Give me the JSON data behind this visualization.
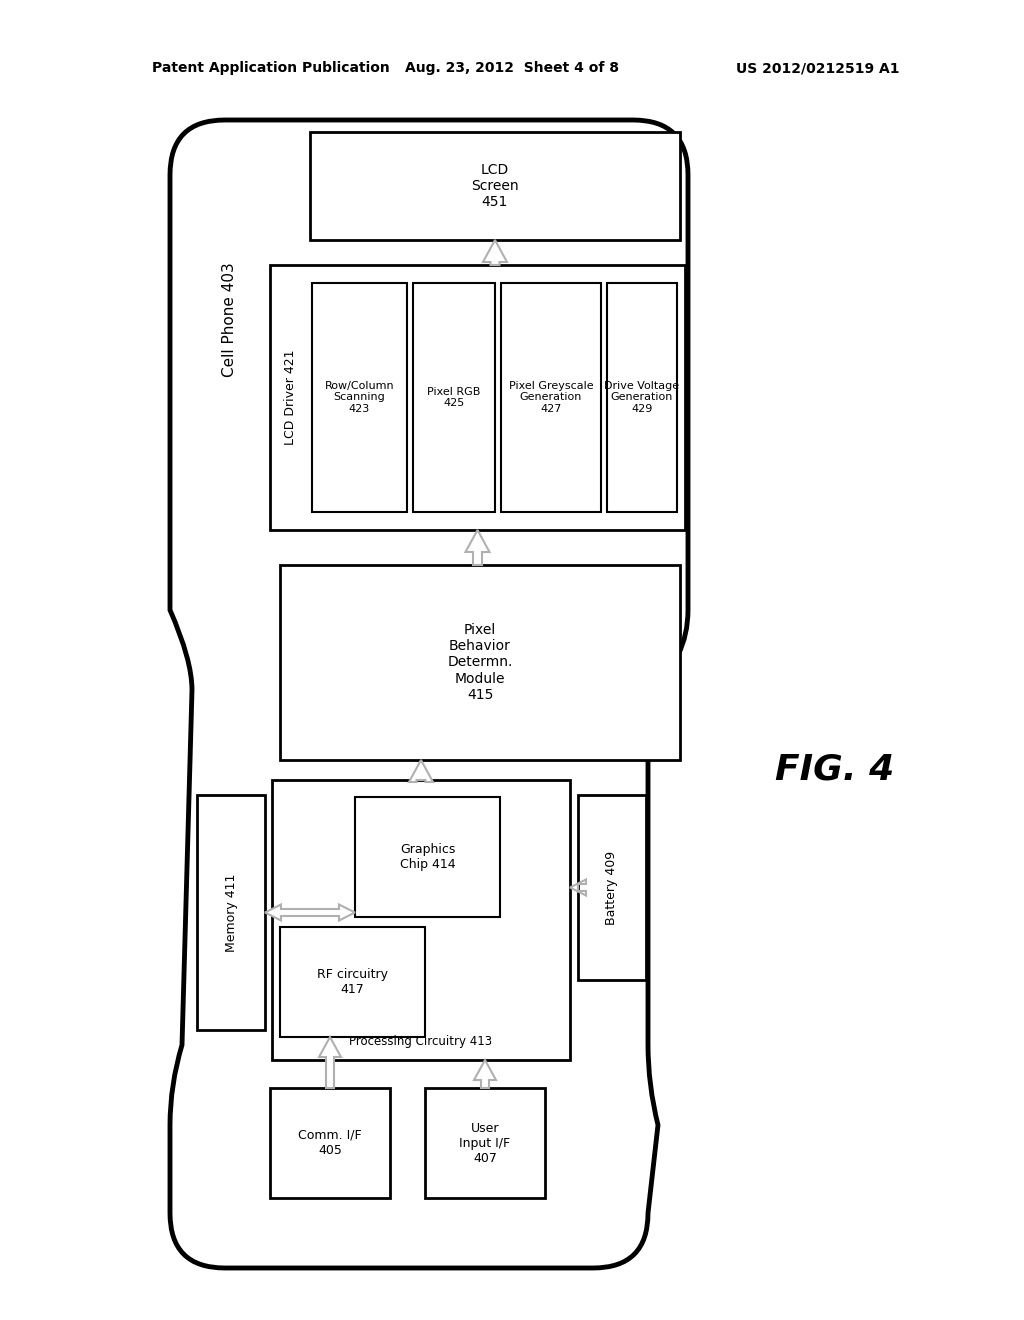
{
  "header_left": "Patent Application Publication",
  "header_center": "Aug. 23, 2012  Sheet 4 of 8",
  "header_right": "US 2012/0212519 A1",
  "fig_label": "FIG. 4",
  "bg_color": "#ffffff"
}
